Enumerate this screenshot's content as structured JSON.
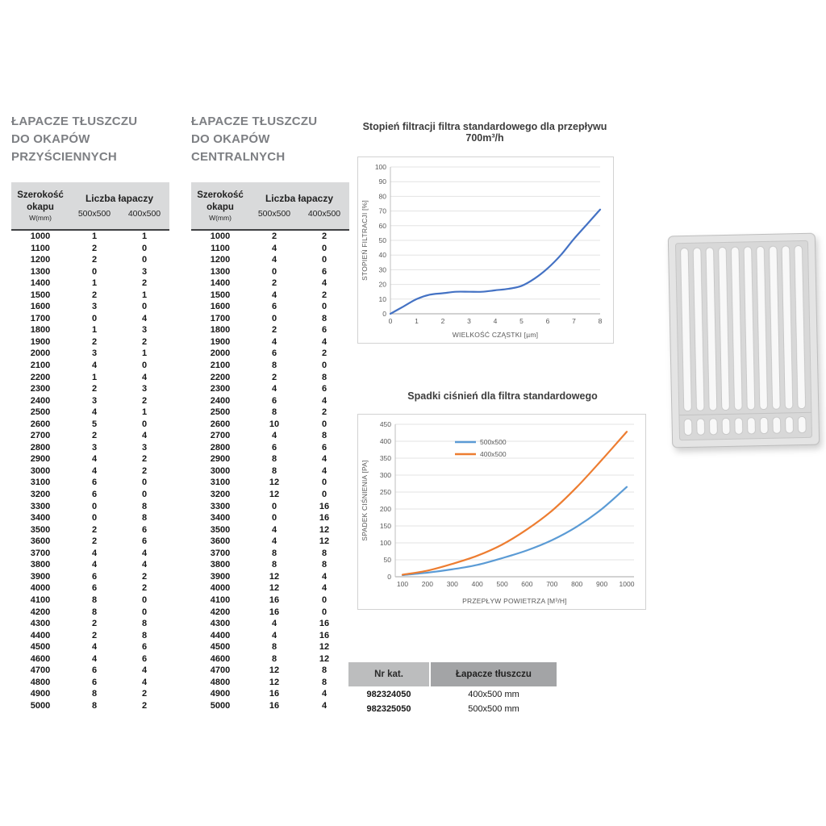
{
  "left_table": {
    "title_lines": [
      "ŁAPACZE TŁUSZCZU",
      "DO OKAPÓW",
      "PRZYŚCIENNYCH"
    ],
    "header": {
      "col1_line1": "Szerokość",
      "col1_line2": "okapu",
      "col1_line3": "W(mm)",
      "group": "Liczba łapaczy",
      "col2": "500x500",
      "col3": "400x500"
    },
    "rows": [
      [
        1000,
        1,
        1
      ],
      [
        1100,
        2,
        0
      ],
      [
        1200,
        2,
        0
      ],
      [
        1300,
        0,
        3
      ],
      [
        1400,
        1,
        2
      ],
      [
        1500,
        2,
        1
      ],
      [
        1600,
        3,
        0
      ],
      [
        1700,
        0,
        4
      ],
      [
        1800,
        1,
        3
      ],
      [
        1900,
        2,
        2
      ],
      [
        2000,
        3,
        1
      ],
      [
        2100,
        4,
        0
      ],
      [
        2200,
        1,
        4
      ],
      [
        2300,
        2,
        3
      ],
      [
        2400,
        3,
        2
      ],
      [
        2500,
        4,
        1
      ],
      [
        2600,
        5,
        0
      ],
      [
        2700,
        2,
        4
      ],
      [
        2800,
        3,
        3
      ],
      [
        2900,
        4,
        2
      ],
      [
        3000,
        4,
        2
      ],
      [
        3100,
        6,
        0
      ],
      [
        3200,
        6,
        0
      ],
      [
        3300,
        0,
        8
      ],
      [
        3400,
        0,
        8
      ],
      [
        3500,
        2,
        6
      ],
      [
        3600,
        2,
        6
      ],
      [
        3700,
        4,
        4
      ],
      [
        3800,
        4,
        4
      ],
      [
        3900,
        6,
        2
      ],
      [
        4000,
        6,
        2
      ],
      [
        4100,
        8,
        0
      ],
      [
        4200,
        8,
        0
      ],
      [
        4300,
        2,
        8
      ],
      [
        4400,
        2,
        8
      ],
      [
        4500,
        4,
        6
      ],
      [
        4600,
        4,
        6
      ],
      [
        4700,
        6,
        4
      ],
      [
        4800,
        6,
        4
      ],
      [
        4900,
        8,
        2
      ],
      [
        5000,
        8,
        2
      ]
    ]
  },
  "center_table": {
    "title_lines": [
      "ŁAPACZE TŁUSZCZU",
      "DO OKAPÓW",
      "CENTRALNYCH"
    ],
    "header": {
      "col1_line1": "Szerokość",
      "col1_line2": "okapu",
      "col1_line3": "W(mm)",
      "group": "Liczba łapaczy",
      "col2": "500x500",
      "col3": "400x500"
    },
    "rows": [
      [
        1000,
        2,
        2
      ],
      [
        1100,
        4,
        0
      ],
      [
        1200,
        4,
        0
      ],
      [
        1300,
        0,
        6
      ],
      [
        1400,
        2,
        4
      ],
      [
        1500,
        4,
        2
      ],
      [
        1600,
        6,
        0
      ],
      [
        1700,
        0,
        8
      ],
      [
        1800,
        2,
        6
      ],
      [
        1900,
        4,
        4
      ],
      [
        2000,
        6,
        2
      ],
      [
        2100,
        8,
        0
      ],
      [
        2200,
        2,
        8
      ],
      [
        2300,
        4,
        6
      ],
      [
        2400,
        6,
        4
      ],
      [
        2500,
        8,
        2
      ],
      [
        2600,
        10,
        0
      ],
      [
        2700,
        4,
        8
      ],
      [
        2800,
        6,
        6
      ],
      [
        2900,
        8,
        4
      ],
      [
        3000,
        8,
        4
      ],
      [
        3100,
        12,
        0
      ],
      [
        3200,
        12,
        0
      ],
      [
        3300,
        0,
        16
      ],
      [
        3400,
        0,
        16
      ],
      [
        3500,
        4,
        12
      ],
      [
        3600,
        4,
        12
      ],
      [
        3700,
        8,
        8
      ],
      [
        3800,
        8,
        8
      ],
      [
        3900,
        12,
        4
      ],
      [
        4000,
        12,
        4
      ],
      [
        4100,
        16,
        0
      ],
      [
        4200,
        16,
        0
      ],
      [
        4300,
        4,
        16
      ],
      [
        4400,
        4,
        16
      ],
      [
        4500,
        8,
        12
      ],
      [
        4600,
        8,
        12
      ],
      [
        4700,
        12,
        8
      ],
      [
        4800,
        12,
        8
      ],
      [
        4900,
        16,
        4
      ],
      [
        5000,
        16,
        4
      ]
    ]
  },
  "chart_data": [
    {
      "type": "line",
      "name": "filtration",
      "title": "Stopień filtracji filtra standardowego dla przepływu 700m³/h",
      "xlabel": "WIELKOŚĆ CZĄSTKI [µm]",
      "ylabel": "STOPIEŃ FILTRACJI [%]",
      "xlim": [
        0,
        8
      ],
      "ylim": [
        0,
        100
      ],
      "xticks": [
        0,
        1,
        2,
        3,
        4,
        5,
        6,
        7,
        8
      ],
      "yticks": [
        0,
        10,
        20,
        30,
        40,
        50,
        60,
        70,
        80,
        90,
        100
      ],
      "grid": true,
      "legend": false,
      "series": [
        {
          "name": "stopień filtracji",
          "color": "#4472c4",
          "x": [
            0,
            0.5,
            1,
            1.5,
            2,
            2.5,
            3,
            3.5,
            4,
            4.5,
            5,
            5.5,
            6,
            6.5,
            7,
            7.5,
            8
          ],
          "y": [
            0,
            5,
            10,
            13,
            14,
            15,
            15,
            15,
            16,
            17,
            19,
            24,
            31,
            40,
            51,
            61,
            71
          ]
        }
      ]
    },
    {
      "type": "line",
      "name": "pressure-drop",
      "title": "Spadki ciśnień dla filtra standardowego",
      "xlabel": "PRZEPŁYW POWIETRZA [M³/H]",
      "ylabel": "SPADEK CIŚNIENIA [PA]",
      "xlim": [
        100,
        1000
      ],
      "ylim": [
        0,
        450
      ],
      "xticks": [
        100,
        200,
        300,
        400,
        500,
        600,
        700,
        800,
        900,
        1000
      ],
      "yticks": [
        0,
        50,
        100,
        150,
        200,
        250,
        300,
        350,
        400,
        450
      ],
      "grid": true,
      "legend": true,
      "legend_position": "top-center",
      "series": [
        {
          "name": "500x500",
          "color": "#5b9bd5",
          "x": [
            100,
            200,
            300,
            400,
            500,
            600,
            700,
            800,
            900,
            1000
          ],
          "y": [
            5,
            12,
            22,
            35,
            55,
            78,
            108,
            148,
            200,
            265
          ]
        },
        {
          "name": "400x500",
          "color": "#ed7d31",
          "x": [
            100,
            200,
            300,
            400,
            500,
            600,
            700,
            800,
            900,
            1000
          ],
          "y": [
            6,
            18,
            38,
            62,
            95,
            140,
            195,
            265,
            345,
            428
          ]
        }
      ]
    }
  ],
  "catalog_table": {
    "headers": [
      "Nr kat.",
      "Łapacze tłuszczu"
    ],
    "rows": [
      [
        "982324050",
        "400x500 mm"
      ],
      [
        "982325050",
        "500x500 mm"
      ]
    ]
  }
}
